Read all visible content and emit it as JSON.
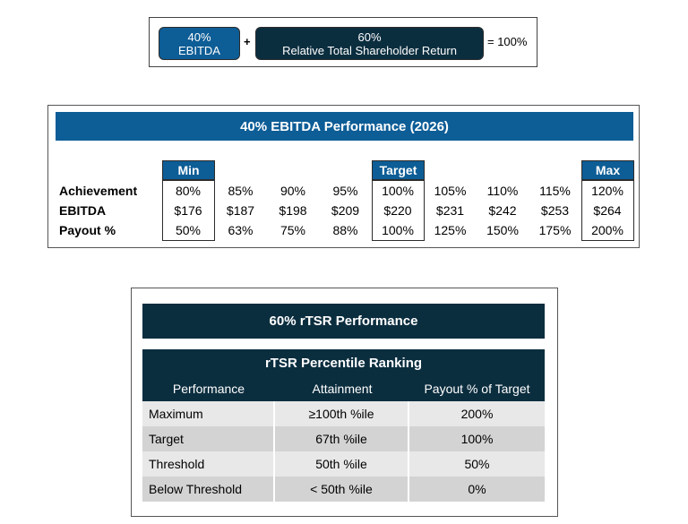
{
  "formula": {
    "ebitda_pct": "40%",
    "ebitda_label": "EBITDA",
    "plus": "+",
    "tsr_pct": "60%",
    "tsr_label": "Relative Total Shareholder Return",
    "equals": "= 100%"
  },
  "ebitda": {
    "title": "40% EBITDA Performance (2026)",
    "highlights": {
      "min": "Min",
      "target": "Target",
      "max": "Max"
    },
    "rows": {
      "achievement": {
        "label": "Achievement",
        "values": [
          "80%",
          "85%",
          "90%",
          "95%",
          "100%",
          "105%",
          "110%",
          "115%",
          "120%"
        ]
      },
      "ebitda": {
        "label": "EBITDA",
        "values": [
          "$176",
          "$187",
          "$198",
          "$209",
          "$220",
          "$231",
          "$242",
          "$253",
          "$264"
        ]
      },
      "payout": {
        "label": "Payout %",
        "values": [
          "50%",
          "63%",
          "75%",
          "88%",
          "100%",
          "125%",
          "150%",
          "175%",
          "200%"
        ]
      }
    }
  },
  "tsr": {
    "title": "60% rTSR Performance",
    "subtitle": "rTSR Percentile Ranking",
    "columns": [
      "Performance",
      "Attainment",
      "Payout % of Target"
    ],
    "rows": [
      [
        "Maximum",
        "≥100th %ile",
        "200%"
      ],
      [
        "Target",
        "67th %ile",
        "100%"
      ],
      [
        "Threshold",
        "50th %ile",
        "50%"
      ],
      [
        "Below Threshold",
        "< 50th %ile",
        "0%"
      ]
    ]
  }
}
